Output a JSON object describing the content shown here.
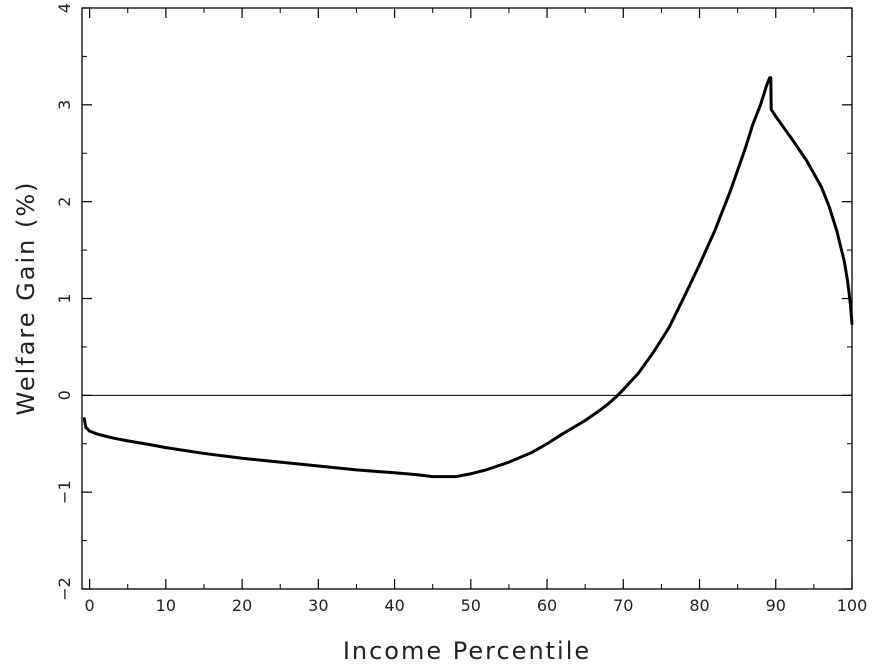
{
  "chart_data": {
    "type": "line",
    "title": "",
    "xlabel": "Income Percentile",
    "ylabel": "Welfare Gain (%)",
    "xlim": [
      -1,
      100
    ],
    "ylim": [
      -2,
      4
    ],
    "grid": false,
    "legend": "none",
    "x_ticks_major": [
      0,
      10,
      20,
      30,
      40,
      50,
      60,
      70,
      80,
      90,
      100
    ],
    "x_tick_labels": [
      "0",
      "10",
      "20",
      "30",
      "40",
      "50",
      "60",
      "70",
      "80",
      "90",
      "100"
    ],
    "y_ticks_major": [
      -2,
      -1,
      0,
      1,
      2,
      3,
      4
    ],
    "y_tick_labels": [
      "−2",
      "−1",
      "0",
      "1",
      "2",
      "3",
      "4"
    ],
    "reference_line_y": 0,
    "colors": {
      "line": "#000000",
      "axis": "#000000",
      "text": "#222222"
    },
    "series": [
      {
        "x": [
          -0.7,
          -0.5,
          0,
          1,
          2,
          3,
          5,
          8,
          10,
          15,
          20,
          25,
          30,
          35,
          40,
          43,
          45,
          46,
          47,
          48,
          50,
          52,
          55,
          58,
          60,
          62,
          65,
          67,
          68,
          69,
          70,
          72,
          74,
          76,
          78,
          80,
          82,
          84,
          86,
          87,
          88,
          88.8,
          89.2,
          89.35,
          89.4,
          89.6,
          90,
          92,
          94,
          96,
          97,
          98,
          99,
          99.4,
          99.6,
          99.8,
          100
        ],
        "y": [
          -0.24,
          -0.33,
          -0.37,
          -0.4,
          -0.42,
          -0.44,
          -0.47,
          -0.51,
          -0.54,
          -0.6,
          -0.65,
          -0.69,
          -0.73,
          -0.77,
          -0.8,
          -0.82,
          -0.84,
          -0.84,
          -0.84,
          -0.84,
          -0.81,
          -0.77,
          -0.69,
          -0.59,
          -0.5,
          -0.4,
          -0.26,
          -0.15,
          -0.09,
          -0.02,
          0.06,
          0.23,
          0.45,
          0.7,
          1.02,
          1.35,
          1.7,
          2.1,
          2.55,
          2.8,
          3.0,
          3.2,
          3.28,
          3.28,
          2.95,
          2.93,
          2.88,
          2.66,
          2.43,
          2.15,
          1.95,
          1.7,
          1.38,
          1.19,
          1.07,
          0.93,
          0.74
        ]
      }
    ]
  }
}
